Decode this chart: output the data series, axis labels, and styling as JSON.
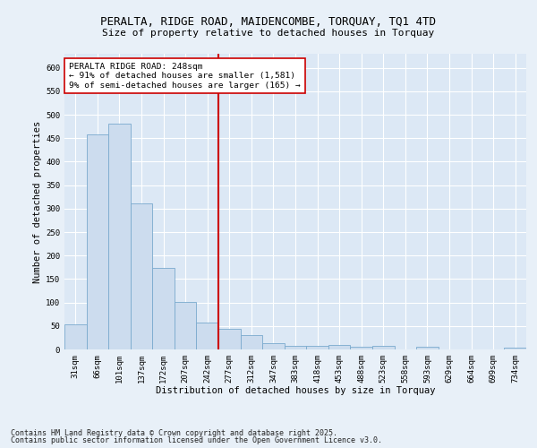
{
  "title": "PERALTA, RIDGE ROAD, MAIDENCOMBE, TORQUAY, TQ1 4TD",
  "subtitle": "Size of property relative to detached houses in Torquay",
  "xlabel": "Distribution of detached houses by size in Torquay",
  "ylabel": "Number of detached properties",
  "categories": [
    "31sqm",
    "66sqm",
    "101sqm",
    "137sqm",
    "172sqm",
    "207sqm",
    "242sqm",
    "277sqm",
    "312sqm",
    "347sqm",
    "383sqm",
    "418sqm",
    "453sqm",
    "488sqm",
    "523sqm",
    "558sqm",
    "593sqm",
    "629sqm",
    "664sqm",
    "699sqm",
    "734sqm"
  ],
  "values": [
    53,
    458,
    481,
    312,
    173,
    101,
    58,
    43,
    30,
    13,
    8,
    8,
    9,
    5,
    8,
    0,
    5,
    0,
    0,
    0,
    3
  ],
  "bar_color": "#ccdcee",
  "bar_edge_color": "#7aaace",
  "vline_color": "#cc0000",
  "vline_index": 6,
  "annotation_text": "PERALTA RIDGE ROAD: 248sqm\n← 91% of detached houses are smaller (1,581)\n9% of semi-detached houses are larger (165) →",
  "annotation_box_color": "#ffffff",
  "annotation_box_edge": "#cc0000",
  "ylim": [
    0,
    630
  ],
  "yticks": [
    0,
    50,
    100,
    150,
    200,
    250,
    300,
    350,
    400,
    450,
    500,
    550,
    600
  ],
  "fig_bg_color": "#e8f0f8",
  "plot_bg_color": "#dce8f5",
  "grid_color": "#ffffff",
  "footer_line1": "Contains HM Land Registry data © Crown copyright and database right 2025.",
  "footer_line2": "Contains public sector information licensed under the Open Government Licence v3.0.",
  "title_fontsize": 9,
  "subtitle_fontsize": 8,
  "axis_label_fontsize": 7.5,
  "tick_fontsize": 6.5,
  "annotation_fontsize": 6.8,
  "footer_fontsize": 6
}
